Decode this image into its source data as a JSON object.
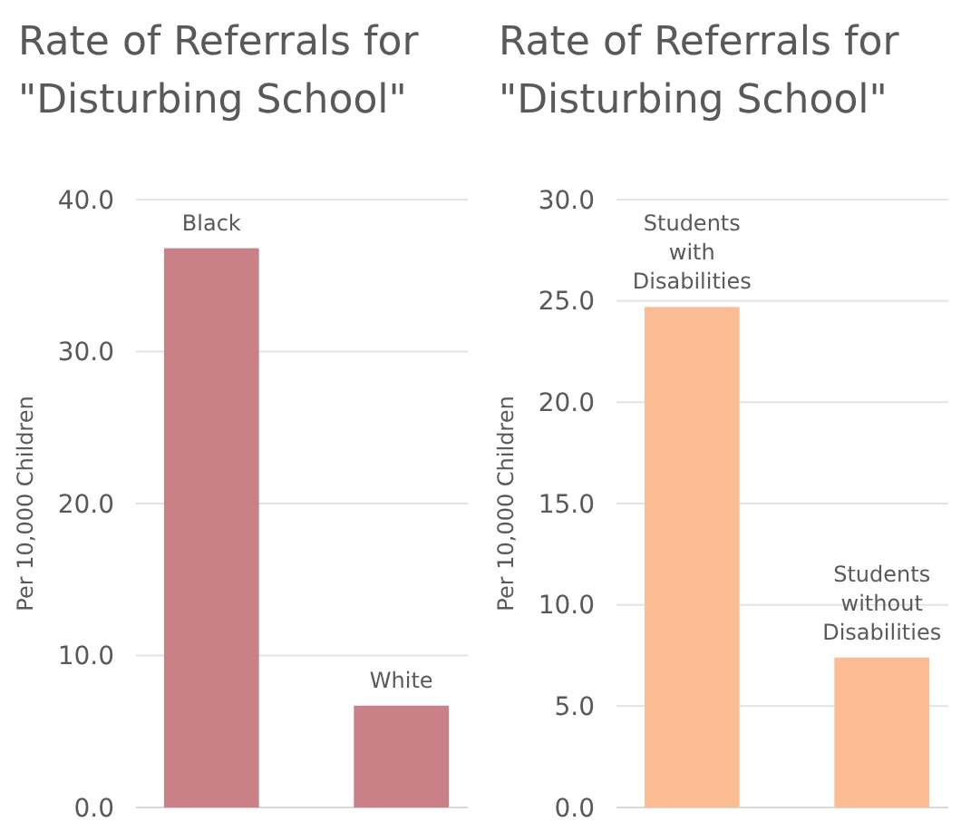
{
  "chart_data": [
    {
      "type": "bar",
      "title": "Rate of Referrals for \"Disturbing School\"",
      "ylabel": "Per 10,000 Children",
      "categories": [
        "Black",
        "White"
      ],
      "values": [
        36.8,
        6.7
      ],
      "color": "#c98087",
      "ylim": [
        0,
        40
      ],
      "yticks": [
        {
          "value": 0,
          "label": "0.0"
        },
        {
          "value": 10,
          "label": "10.0"
        },
        {
          "value": 20,
          "label": "20.0"
        },
        {
          "value": 30,
          "label": "30.0"
        },
        {
          "value": 40,
          "label": "40.0"
        }
      ],
      "grid": "y"
    },
    {
      "type": "bar",
      "title": "Rate of Referrals for \"Disturbing School\"",
      "ylabel": "Per 10,000 Children",
      "categories": [
        "Students with Disabilities",
        "Students without Disabilities"
      ],
      "values": [
        24.7,
        7.4
      ],
      "color": "#fcbc94",
      "ylim": [
        0,
        30
      ],
      "yticks": [
        {
          "value": 0,
          "label": "0.0"
        },
        {
          "value": 5,
          "label": "5.0"
        },
        {
          "value": 10,
          "label": "10.0"
        },
        {
          "value": 15,
          "label": "15.0"
        },
        {
          "value": 20,
          "label": "20.0"
        },
        {
          "value": 25,
          "label": "25.0"
        },
        {
          "value": 30,
          "label": "30.0"
        }
      ],
      "grid": "y"
    }
  ]
}
